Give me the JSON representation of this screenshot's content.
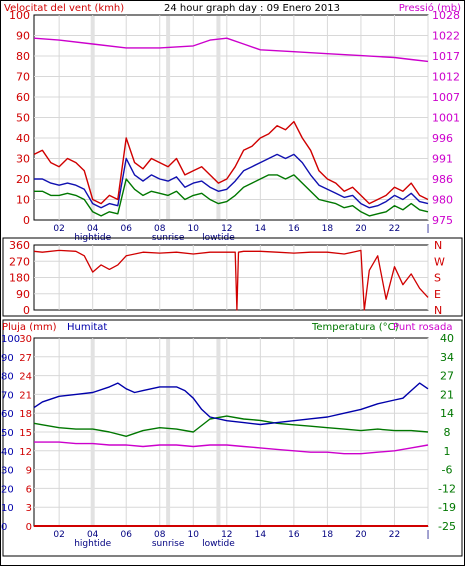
{
  "header": {
    "left_title": "Velocitat del vent (kmh)",
    "center_title": "24 hour graph day : 09 Enero 2013",
    "right_title": "Pressió (mb)"
  },
  "panel3_header": {
    "rain_label": "Pluja (mm)",
    "humidity_label": "Humitat",
    "temp_label": "Temperatura (°C)",
    "dew_label": "Punt rosada"
  },
  "x_ticks": [
    "02",
    "04",
    "06",
    "08",
    "10",
    "12",
    "14",
    "16",
    "18",
    "20",
    "22",
    "|"
  ],
  "event_labels": [
    {
      "label": "hightide",
      "hour": 4
    },
    {
      "label": "sunrise",
      "hour": 8.5
    },
    {
      "label": "lowtide",
      "hour": 11.5
    }
  ],
  "colors": {
    "wind_avg": "#d00000",
    "wind_gust": "#1010b0",
    "wind_min": "#007700",
    "pressure": "#cc00cc",
    "direction": "#d00000",
    "humidity": "#0000aa",
    "temperature": "#007700",
    "dew_point": "#cc00cc",
    "rain": "#d00000",
    "grid": "#d8d8d8"
  },
  "chart_data": [
    {
      "type": "line",
      "panel": "wind-pressure",
      "x_unit": "hour",
      "x_range": [
        0.5,
        24
      ],
      "ylim_left": [
        0,
        100
      ],
      "yticks_left": [
        0,
        10,
        20,
        30,
        40,
        50,
        60,
        70,
        80,
        90,
        100
      ],
      "ylim_right": [
        975,
        1028
      ],
      "yticks_right": [
        975,
        980,
        986,
        991,
        996,
        1001,
        1007,
        1012,
        1017,
        1022,
        1028
      ],
      "series": [
        {
          "key": "wind_max",
          "axis": "left",
          "x": [
            0.5,
            1,
            1.5,
            2,
            2.5,
            3,
            3.5,
            4,
            4.5,
            5,
            5.5,
            6,
            6.5,
            7,
            7.5,
            8,
            8.5,
            9,
            9.5,
            10,
            10.5,
            11,
            11.5,
            12,
            12.5,
            13,
            13.5,
            14,
            14.5,
            15,
            15.5,
            16,
            16.5,
            17,
            17.5,
            18,
            18.5,
            19,
            19.5,
            20,
            20.5,
            21,
            21.5,
            22,
            22.5,
            23,
            23.5,
            24
          ],
          "y": [
            32,
            34,
            28,
            26,
            30,
            28,
            24,
            10,
            8,
            12,
            10,
            40,
            28,
            25,
            30,
            28,
            26,
            30,
            22,
            24,
            26,
            22,
            18,
            20,
            26,
            34,
            36,
            40,
            42,
            46,
            44,
            48,
            40,
            34,
            24,
            20,
            18,
            14,
            16,
            12,
            8,
            10,
            12,
            16,
            14,
            18,
            12,
            10
          ]
        },
        {
          "key": "wind_avg",
          "axis": "left",
          "x": [
            0.5,
            1,
            1.5,
            2,
            2.5,
            3,
            3.5,
            4,
            4.5,
            5,
            5.5,
            6,
            6.5,
            7,
            7.5,
            8,
            8.5,
            9,
            9.5,
            10,
            10.5,
            11,
            11.5,
            12,
            12.5,
            13,
            13.5,
            14,
            14.5,
            15,
            15.5,
            16,
            16.5,
            17,
            17.5,
            18,
            18.5,
            19,
            19.5,
            20,
            20.5,
            21,
            21.5,
            22,
            22.5,
            23,
            23.5,
            24
          ],
          "y": [
            20,
            20,
            18,
            17,
            18,
            17,
            15,
            8,
            6,
            8,
            7,
            30,
            22,
            19,
            22,
            20,
            19,
            21,
            16,
            18,
            19,
            16,
            14,
            15,
            19,
            24,
            26,
            28,
            30,
            32,
            30,
            32,
            28,
            22,
            17,
            15,
            13,
            11,
            12,
            8,
            6,
            7,
            9,
            12,
            10,
            13,
            9,
            8
          ]
        },
        {
          "key": "wind_min",
          "axis": "left",
          "x": [
            0.5,
            1,
            1.5,
            2,
            2.5,
            3,
            3.5,
            4,
            4.5,
            5,
            5.5,
            6,
            6.5,
            7,
            7.5,
            8,
            8.5,
            9,
            9.5,
            10,
            10.5,
            11,
            11.5,
            12,
            12.5,
            13,
            13.5,
            14,
            14.5,
            15,
            15.5,
            16,
            16.5,
            17,
            17.5,
            18,
            18.5,
            19,
            19.5,
            20,
            20.5,
            21,
            21.5,
            22,
            22.5,
            23,
            23.5,
            24
          ],
          "y": [
            14,
            14,
            12,
            12,
            13,
            12,
            10,
            4,
            2,
            4,
            3,
            20,
            15,
            12,
            14,
            13,
            12,
            14,
            10,
            12,
            13,
            10,
            8,
            9,
            12,
            16,
            18,
            20,
            22,
            22,
            20,
            22,
            18,
            14,
            10,
            9,
            8,
            6,
            7,
            4,
            2,
            3,
            4,
            7,
            5,
            8,
            5,
            4
          ]
        },
        {
          "key": "pressure",
          "axis": "right",
          "x": [
            0.5,
            2,
            4,
            6,
            8,
            10,
            11,
            12,
            13,
            14,
            16,
            18,
            20,
            22,
            23,
            24
          ],
          "y": [
            1022,
            1021.5,
            1020.5,
            1019.5,
            1019.5,
            1020,
            1021.5,
            1022,
            1020.5,
            1019,
            1018.5,
            1018,
            1017.5,
            1017,
            1016.5,
            1016
          ]
        }
      ]
    },
    {
      "type": "line",
      "panel": "wind-direction",
      "x_unit": "hour",
      "x_range": [
        0.5,
        24
      ],
      "ylim": [
        0,
        360
      ],
      "yticks": [
        0,
        90,
        180,
        270,
        360
      ],
      "yticks_right": [
        "N",
        "W",
        "S",
        "E",
        "N"
      ],
      "series": [
        {
          "key": "direction",
          "x": [
            0.5,
            1,
            2,
            3,
            3.5,
            4,
            4.5,
            5,
            5.5,
            6,
            7,
            8,
            9,
            10,
            11,
            12,
            12.5,
            12.6,
            12.7,
            13,
            14,
            15,
            16,
            17,
            18,
            19,
            19.5,
            20,
            20.2,
            20.5,
            21,
            21.5,
            22,
            22.5,
            23,
            23.5,
            24
          ],
          "y": [
            325,
            320,
            330,
            325,
            300,
            210,
            250,
            225,
            250,
            300,
            320,
            315,
            320,
            310,
            320,
            320,
            320,
            0,
            320,
            325,
            325,
            320,
            315,
            320,
            320,
            310,
            320,
            330,
            0,
            220,
            300,
            60,
            240,
            140,
            200,
            120,
            70
          ]
        }
      ]
    },
    {
      "type": "line",
      "panel": "rain-humidity-temp",
      "x_unit": "hour",
      "x_range": [
        0.5,
        24
      ],
      "ylim_left_humidity": [
        0,
        100
      ],
      "yticks_left_humidity": [
        0,
        10,
        20,
        30,
        40,
        50,
        60,
        70,
        80,
        90,
        100
      ],
      "yticks_left_rain": [
        0,
        3,
        6,
        9,
        12,
        15,
        18,
        21,
        24,
        27,
        30
      ],
      "ylim_right": [
        -25,
        40
      ],
      "yticks_right": [
        -25,
        -19,
        -12,
        -6,
        1,
        8,
        14,
        21,
        27,
        34,
        40
      ],
      "series": [
        {
          "key": "humidity",
          "axis": "left",
          "x": [
            0.5,
            1,
            2,
            3,
            4,
            5,
            5.5,
            6,
            6.5,
            7,
            8,
            9,
            9.5,
            10,
            10.5,
            11,
            12,
            13,
            14,
            15,
            16,
            17,
            18,
            19,
            20,
            21,
            22,
            22.5,
            23,
            23.5,
            24
          ],
          "y": [
            63,
            66,
            69,
            70,
            71,
            74,
            76,
            73,
            71,
            72,
            74,
            74,
            72,
            68,
            62,
            58,
            56,
            55,
            54,
            55,
            56,
            57,
            58,
            60,
            62,
            65,
            67,
            68,
            72,
            76,
            73
          ]
        },
        {
          "key": "temperature",
          "axis": "right",
          "x": [
            0.5,
            1,
            2,
            3,
            4,
            5,
            6,
            7,
            8,
            9,
            10,
            11,
            12,
            13,
            14,
            15,
            16,
            17,
            18,
            19,
            20,
            21,
            22,
            23,
            24
          ],
          "y": [
            10.5,
            10,
            9,
            8.5,
            8.5,
            7.5,
            6,
            8,
            9,
            8.5,
            7.5,
            12,
            13,
            12,
            11.5,
            10.5,
            10,
            9.5,
            9,
            8.5,
            8,
            8.5,
            8,
            8,
            7.5
          ]
        },
        {
          "key": "dew_point",
          "axis": "right",
          "x": [
            0.5,
            1,
            2,
            3,
            4,
            5,
            6,
            7,
            8,
            9,
            10,
            11,
            12,
            13,
            14,
            15,
            16,
            17,
            18,
            19,
            20,
            21,
            22,
            23,
            24
          ],
          "y": [
            4,
            4,
            4,
            3.5,
            3.5,
            3,
            3,
            2.5,
            3,
            3,
            2.5,
            3,
            3,
            2.5,
            2,
            1.5,
            1,
            0.5,
            0.5,
            0,
            0,
            0.5,
            1,
            2,
            3
          ]
        },
        {
          "key": "rain",
          "axis": "left",
          "x": [
            0.5,
            24
          ],
          "y": [
            0,
            0
          ]
        }
      ]
    }
  ]
}
